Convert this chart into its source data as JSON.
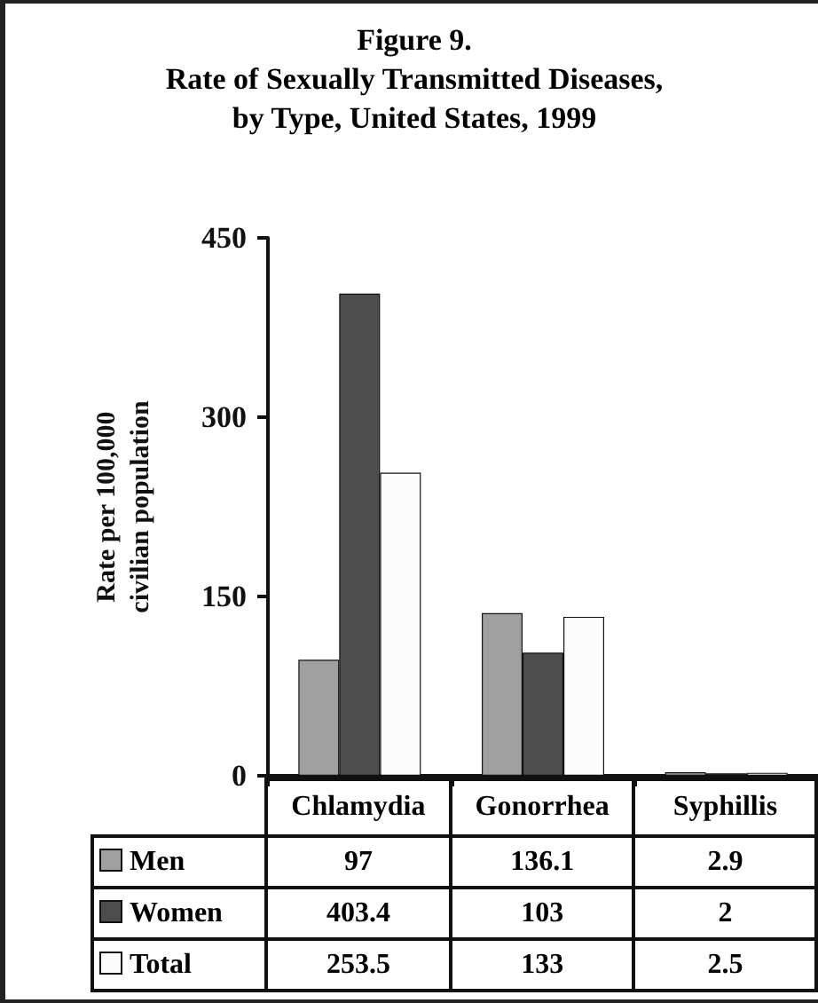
{
  "chart_data": {
    "type": "bar",
    "title": "Figure 9.\nRate of Sexually Transmitted Diseases,\nby Type, United States, 1999",
    "ylabel": "Rate per 100,000\ncivilian population",
    "categories": [
      "Chlamydia",
      "Gonorrhea",
      "Syphillis"
    ],
    "series": [
      {
        "name": "Men",
        "color": "#a0a0a0",
        "values": [
          97,
          136.1,
          2.9
        ]
      },
      {
        "name": "Women",
        "color": "#4d4d4d",
        "values": [
          403.4,
          103,
          2
        ]
      },
      {
        "name": "Total",
        "color": "#fcfcfc",
        "values": [
          253.5,
          133,
          2.5
        ]
      }
    ],
    "ylim": [
      0,
      450
    ],
    "yticks": [
      0,
      150,
      300,
      450
    ],
    "grid": false,
    "legend": "bottom left",
    "data_labels": true
  }
}
